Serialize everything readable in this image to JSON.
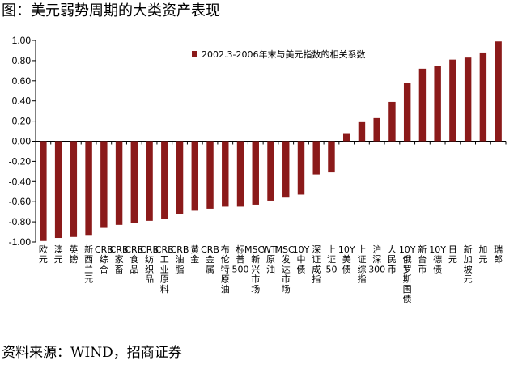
{
  "header": {
    "title": "图：美元弱势周期的大类资产表现"
  },
  "footer": {
    "source": "资料来源：WIND，招商证券"
  },
  "chart_data": {
    "type": "bar",
    "title": "",
    "xlabel": "",
    "ylabel": "",
    "ylim": [
      -1.0,
      1.0
    ],
    "yticks": [
      "1.00",
      "0.80",
      "0.60",
      "0.40",
      "0.20",
      "0.00",
      "-0.20",
      "-0.40",
      "-0.60",
      "-0.80",
      "-1.00"
    ],
    "grid": false,
    "legend_position": "top",
    "bar_color": "#8B1A1A",
    "categories": [
      "欧元",
      "澳元",
      "英镑",
      "新西兰元",
      "CRB综合",
      "CRB家畜",
      "CRB食品",
      "CRB纺织品",
      "CRB工业原料",
      "CRB油脂",
      "黄金",
      "CRB金属",
      "布伦特原油",
      "标普500",
      "MSCI新兴市场",
      "WTI原油",
      "MSCI发达市场",
      "10Y中债",
      "深证成指",
      "上证50",
      "10Y美债",
      "上证综指",
      "沪深300",
      "人民币",
      "10Y俄罗斯国债",
      "新台币",
      "10Y德债",
      "日元",
      "新加坡元",
      "加元",
      "瑞郎"
    ],
    "series": [
      {
        "name": "2002.3-2006年末与美元指数的相关系数",
        "values": [
          -0.99,
          -0.96,
          -0.95,
          -0.93,
          -0.86,
          -0.83,
          -0.81,
          -0.79,
          -0.77,
          -0.72,
          -0.69,
          -0.67,
          -0.65,
          -0.65,
          -0.63,
          -0.59,
          -0.56,
          -0.53,
          -0.33,
          -0.31,
          0.08,
          0.19,
          0.23,
          0.39,
          0.58,
          0.72,
          0.75,
          0.81,
          0.83,
          0.88,
          0.99
        ]
      }
    ]
  }
}
